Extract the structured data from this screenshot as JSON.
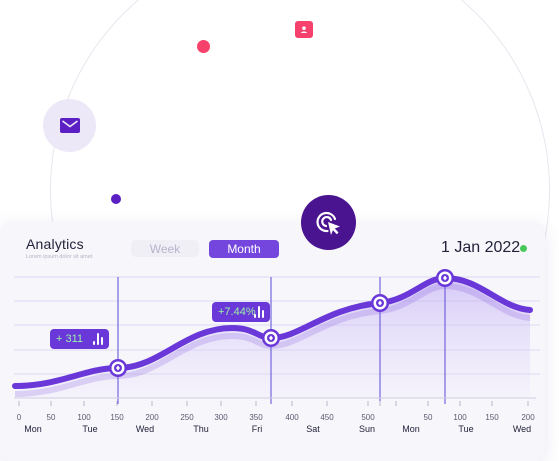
{
  "header": {
    "title": "Analytics",
    "subtitle": "Lorem ipsum dolor sit amet",
    "tabs": [
      {
        "label": "Week",
        "active": false
      },
      {
        "label": "Month",
        "active": true
      }
    ],
    "date": "1 Jan 2022"
  },
  "badges": {
    "first": "+ 311",
    "second": "+7.44%"
  },
  "decor_icons": [
    "chat-icon",
    "mail-icon",
    "cursor-click-icon"
  ],
  "colors": {
    "accent": "#7446dd",
    "line": "#6a38d8",
    "dark_purple": "#4a138f",
    "pink": "#f5416c",
    "live_green": "#49c85a",
    "badge_text_green": "#9bf0a8"
  },
  "chart_data": {
    "type": "area",
    "x_numbers": [
      "0",
      "50",
      "100",
      "150",
      "200",
      "250",
      "300",
      "350",
      "400",
      "450",
      "500",
      "50",
      "100",
      "150",
      "200"
    ],
    "x_days": [
      "Mon",
      "Tue",
      "Wed",
      "Thu",
      "Fri",
      "Sat",
      "Sun",
      "Mon",
      "Tue",
      "Wed"
    ],
    "markers": [
      "+ 311",
      "+7.44%"
    ]
  }
}
